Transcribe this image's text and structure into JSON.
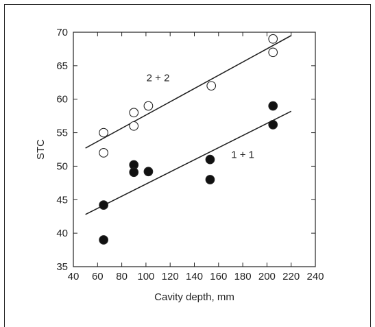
{
  "chart_data": {
    "type": "scatter",
    "xlabel": "Cavity depth, mm",
    "ylabel": "STC",
    "xlim": [
      40,
      240
    ],
    "ylim": [
      35,
      70
    ],
    "x_ticks": [
      40,
      60,
      80,
      100,
      120,
      140,
      160,
      180,
      200,
      220,
      240
    ],
    "y_ticks": [
      35,
      40,
      45,
      50,
      55,
      60,
      65,
      70
    ],
    "grid": false,
    "series": [
      {
        "name": "2 + 2",
        "marker": "open-circle",
        "points": [
          [
            65,
            55
          ],
          [
            65,
            52
          ],
          [
            90,
            58
          ],
          [
            90,
            56
          ],
          [
            102,
            59
          ],
          [
            154,
            62
          ],
          [
            205,
            69
          ],
          [
            205,
            67
          ]
        ],
        "fit_line": [
          [
            50,
            52.7
          ],
          [
            220,
            69.5
          ]
        ]
      },
      {
        "name": "1 + 1",
        "marker": "filled-circle",
        "points": [
          [
            65,
            44.2
          ],
          [
            65,
            39
          ],
          [
            90,
            50.2
          ],
          [
            90,
            49.1
          ],
          [
            102,
            49.2
          ],
          [
            153,
            51
          ],
          [
            153,
            48
          ],
          [
            205,
            59
          ],
          [
            205,
            56.2
          ]
        ],
        "fit_line": [
          [
            50,
            42.8
          ],
          [
            220,
            58.2
          ]
        ]
      }
    ],
    "annotations": [
      {
        "text": "2 + 2",
        "x": 110,
        "y": 62.7
      },
      {
        "text": "1 + 1",
        "x": 180,
        "y": 51.2
      }
    ]
  }
}
